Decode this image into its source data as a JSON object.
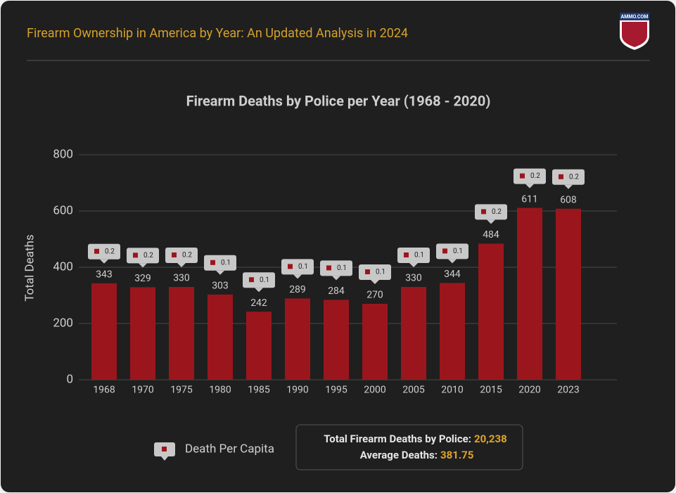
{
  "header": {
    "title": "Firearm Ownership in America by Year: An Updated Analysis in 2024",
    "logo": "AMMO.COM"
  },
  "chart_data": {
    "type": "bar",
    "title": "Firearm Deaths by Police per Year (1968 - 2020)",
    "y_label": "Total Deaths",
    "categories": [
      "1968",
      "1970",
      "1975",
      "1980",
      "1985",
      "1990",
      "1995",
      "2000",
      "2005",
      "2010",
      "2015",
      "2020",
      "2023"
    ],
    "series": [
      {
        "name": "Total Deaths",
        "color": "#9b161c",
        "values": [
          343,
          329,
          330,
          303,
          242,
          289,
          284,
          270,
          330,
          344,
          484,
          611,
          608
        ]
      },
      {
        "name": "Death Per Capita",
        "color": "#9b161c",
        "values": [
          0.2,
          0.2,
          0.2,
          0.1,
          0.1,
          0.1,
          0.1,
          0.1,
          0.1,
          0.1,
          0.2,
          0.2,
          0.2
        ]
      }
    ],
    "ylim": [
      0,
      800
    ],
    "yticks": [
      0,
      200,
      400,
      600,
      800
    ],
    "grid": true
  },
  "summary": {
    "total_label": "Total Firearm Deaths by Police:",
    "total": "20,238",
    "average_label": "Average Deaths:",
    "average": "381.75"
  }
}
